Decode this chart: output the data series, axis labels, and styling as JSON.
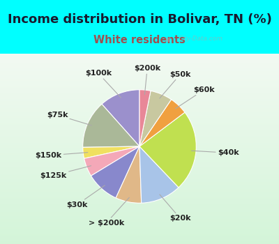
{
  "title": "Income distribution in Bolivar, TN (%)",
  "subtitle": "White residents",
  "title_color": "#1a1a2e",
  "subtitle_color": "#a05050",
  "top_bg_color": "#00ffff",
  "chart_bg_top": "#e8f8f5",
  "chart_bg_bottom": "#c8e8d8",
  "watermark": "City-Data.com",
  "labels": [
    "$100k",
    "$75k",
    "$150k",
    "$125k",
    "$30k",
    "> $200k",
    "$20k",
    "$40k",
    "$60k",
    "$50k",
    "$200k"
  ],
  "sizes": [
    11,
    13,
    3,
    5,
    9,
    7,
    11,
    22,
    5,
    6,
    3
  ],
  "colors": [
    "#9b90cc",
    "#aab898",
    "#f0e060",
    "#f4a8b8",
    "#8888cc",
    "#e0b888",
    "#a8c4e8",
    "#c0e050",
    "#f0a040",
    "#c8c8a0",
    "#e88898"
  ],
  "label_fontsize": 8,
  "title_fontsize": 13,
  "subtitle_fontsize": 10.5,
  "start_angle": 90
}
